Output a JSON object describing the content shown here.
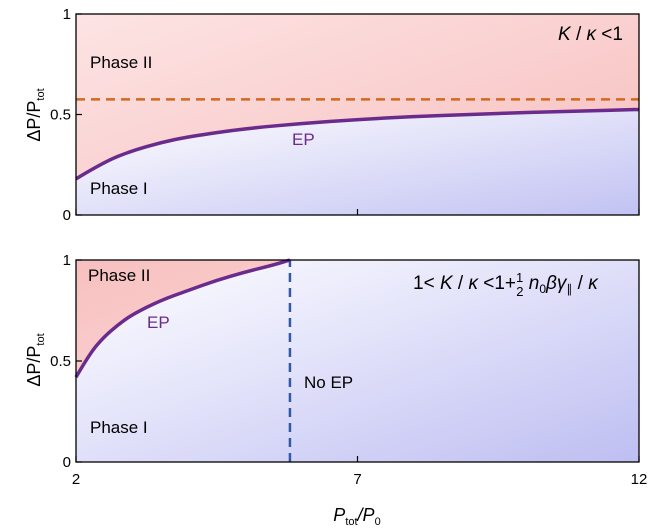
{
  "chart_data": [
    {
      "type": "line",
      "panel": "top",
      "title": "",
      "xlabel": "",
      "ylabel": "ΔP/P_tot",
      "xlim": [
        2,
        12
      ],
      "ylim": [
        0,
        1
      ],
      "yticks": [
        0,
        0.5,
        1
      ],
      "ytick_labels": [
        "0",
        "0.5",
        "1"
      ],
      "xticks": [
        2,
        7,
        12
      ],
      "region_labels": [
        "Phase II",
        "Phase I"
      ],
      "curve_label": "EP",
      "condition_label": "K / κ < 1",
      "series": [
        {
          "style": "solid",
          "color": "#6a2b8c",
          "x": [
            2,
            2.5,
            3,
            3.5,
            4,
            5,
            6,
            7,
            8,
            9,
            10,
            11,
            12
          ],
          "y": [
            0.18,
            0.265,
            0.32,
            0.36,
            0.39,
            0.43,
            0.455,
            0.475,
            0.49,
            0.5,
            0.51,
            0.517,
            0.525
          ]
        },
        {
          "style": "dashed",
          "color": "#d2691e",
          "x": [
            2,
            12
          ],
          "y": [
            0.575,
            0.575
          ]
        }
      ],
      "colors": {
        "phase2": "#f8c4c4",
        "phase1": "#c6c6f4"
      }
    },
    {
      "type": "line",
      "panel": "bottom",
      "title": "",
      "xlabel": "P_tot/P_0",
      "ylabel": "ΔP/P_tot",
      "xlim": [
        2,
        12
      ],
      "ylim": [
        0,
        1
      ],
      "yticks": [
        0,
        0.5,
        1
      ],
      "ytick_labels": [
        "0",
        "0.5",
        "1"
      ],
      "xticks": [
        2,
        7,
        12
      ],
      "xtick_labels": [
        "2",
        "7",
        "12"
      ],
      "region_labels": [
        "Phase II",
        "Phase I"
      ],
      "curve_label": "EP",
      "no_ep_label": "No EP",
      "condition_label": "1 < K / κ < 1 + ½ n₀βγ∥ / κ",
      "series": [
        {
          "style": "solid",
          "color": "#6a2b8c",
          "x": [
            2,
            2.25,
            2.5,
            2.75,
            3,
            3.5,
            4,
            4.5,
            5,
            5.5,
            5.8
          ],
          "y": [
            0.42,
            0.54,
            0.62,
            0.68,
            0.73,
            0.8,
            0.85,
            0.9,
            0.94,
            0.975,
            1.0
          ]
        },
        {
          "style": "dashed",
          "color": "#3458a8",
          "x": [
            5.8,
            5.8
          ],
          "y": [
            0,
            1
          ]
        }
      ],
      "colors": {
        "phase2": "#f8c4c4",
        "phase1": "#c6c6f4"
      }
    }
  ],
  "labels": {
    "top_phase2": "Phase II",
    "top_phase1": "Phase I",
    "top_ep": "EP",
    "bottom_phase2": "Phase II",
    "bottom_phase1": "Phase I",
    "bottom_ep": "EP",
    "no_ep": "No EP",
    "ylabel_top_main": "ΔP/P",
    "ylabel_top_sub": "tot",
    "ylabel_bottom_main": "ΔP/P",
    "ylabel_bottom_sub": "tot",
    "xlabel_main_1": "P",
    "xlabel_sub_1": "tot",
    "xlabel_main_2": "/P",
    "xlabel_sub_2": "0"
  },
  "ticks": {
    "top_y": [
      "0",
      "0.5",
      "1"
    ],
    "bottom_y": [
      "0",
      "0.5",
      "1"
    ],
    "bottom_x": [
      "2",
      "7",
      "12"
    ]
  }
}
